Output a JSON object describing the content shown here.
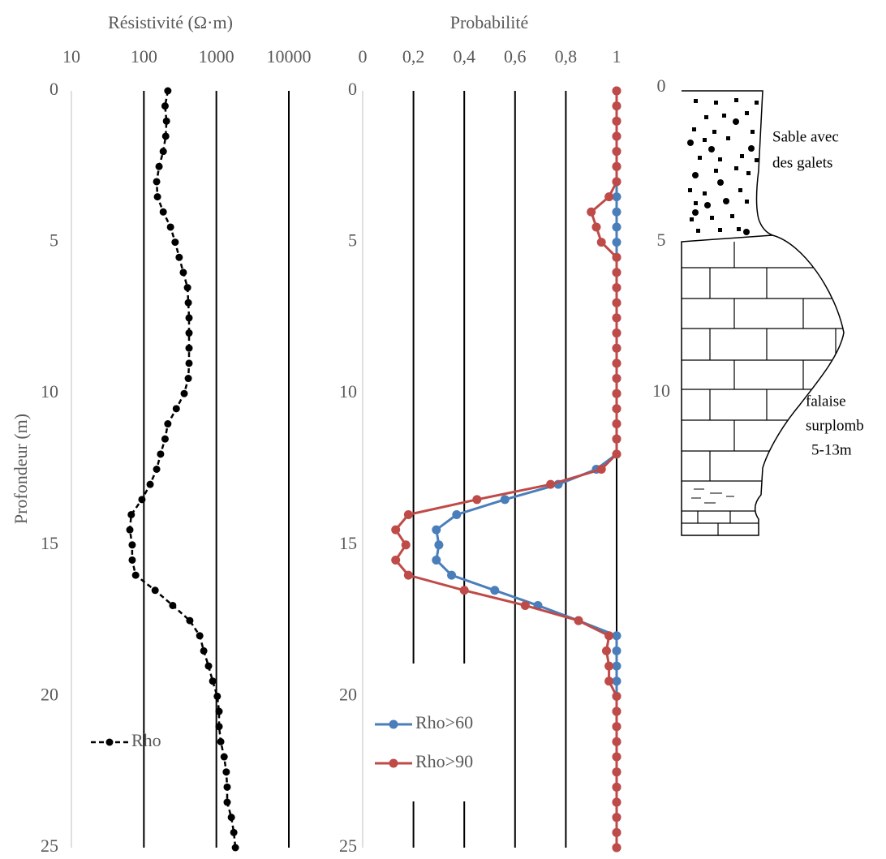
{
  "chart_data": [
    {
      "type": "line",
      "x_label": "Résistivité (Ω·m)",
      "y_label": "Profondeur (m)",
      "xscale": "log",
      "xlim": [
        10,
        10000
      ],
      "xticks": [
        10,
        100,
        1000,
        10000
      ],
      "ylim": [
        0,
        25
      ],
      "yticks": [
        0,
        5,
        10,
        15,
        20,
        25
      ],
      "y_inverted": true,
      "grid": true,
      "legend": "lower left",
      "line_style": "dashed",
      "depth": [
        0,
        0.5,
        1,
        1.5,
        2,
        2.5,
        3,
        3.5,
        4,
        4.5,
        5,
        5.5,
        6,
        6.5,
        7,
        7.5,
        8,
        8.5,
        9,
        9.5,
        10,
        10.5,
        11,
        11.5,
        12,
        12.5,
        13,
        13.5,
        14,
        14.5,
        15,
        15.5,
        16,
        16.5,
        17,
        17.5,
        18,
        18.5,
        19,
        19.5,
        20,
        20.5,
        21,
        21.5,
        22,
        22.5,
        23,
        23.5,
        24,
        24.5,
        25
      ],
      "series": [
        {
          "name": "Rho",
          "color": "#000000",
          "values": [
            214,
            196,
            205,
            200,
            185,
            162,
            150,
            154,
            185,
            233,
            270,
            307,
            350,
            400,
            410,
            420,
            420,
            420,
            420,
            410,
            360,
            280,
            214,
            196,
            170,
            150,
            122,
            94,
            67,
            64,
            69,
            69,
            77,
            143,
            250,
            430,
            590,
            670,
            780,
            890,
            1030,
            1090,
            1090,
            1150,
            1280,
            1370,
            1410,
            1410,
            1610,
            1740,
            1830
          ]
        }
      ]
    },
    {
      "type": "line",
      "x_label": "Probabilité",
      "xlim": [
        0,
        1
      ],
      "xticks": [
        0,
        {
          "value": 0.2,
          "label": "0,2"
        },
        {
          "value": 0.4,
          "label": "0,4"
        },
        {
          "value": 0.6,
          "label": "0,6"
        },
        {
          "value": 0.8,
          "label": "0,8"
        },
        1
      ],
      "ylim": [
        0,
        25
      ],
      "yticks": [
        0,
        5,
        10,
        15,
        20,
        25
      ],
      "y_inverted": true,
      "grid": true,
      "legend": "lower left",
      "depth": [
        0,
        0.5,
        1,
        1.5,
        2,
        2.5,
        3,
        3.5,
        4,
        4.5,
        5,
        5.5,
        6,
        6.5,
        7,
        7.5,
        8,
        8.5,
        9,
        9.5,
        10,
        10.5,
        11,
        11.5,
        12,
        12.5,
        13,
        13.5,
        14,
        14.5,
        15,
        15.5,
        16,
        16.5,
        17,
        17.5,
        18,
        18.5,
        19,
        19.5,
        20,
        20.5,
        21,
        21.5,
        22,
        22.5,
        23,
        23.5,
        24,
        24.5,
        25
      ],
      "series": [
        {
          "name": "Rho>60",
          "color": "#4a7ebb",
          "values": [
            1,
            1,
            1,
            1,
            1,
            1,
            1,
            1,
            1,
            1,
            1,
            1,
            1,
            1,
            1,
            1,
            1,
            1,
            1,
            1,
            1,
            1,
            1,
            1,
            1,
            0.92,
            0.77,
            0.56,
            0.37,
            0.29,
            0.3,
            0.29,
            0.35,
            0.52,
            0.69,
            0.85,
            1,
            1,
            1,
            1,
            1,
            1,
            1,
            1,
            1,
            1,
            1,
            1,
            1,
            1,
            1
          ]
        },
        {
          "name": "Rho>90",
          "color": "#be4b48",
          "values": [
            1,
            1,
            1,
            1,
            1,
            1,
            1,
            0.97,
            0.9,
            0.92,
            0.94,
            1,
            1,
            1,
            1,
            1,
            1,
            1,
            1,
            1,
            1,
            1,
            1,
            1,
            1,
            0.94,
            0.74,
            0.45,
            0.18,
            0.13,
            0.17,
            0.13,
            0.18,
            0.4,
            0.64,
            0.85,
            0.97,
            0.96,
            0.97,
            0.97,
            1,
            1,
            1,
            1,
            1,
            1,
            1,
            1,
            1,
            1,
            1
          ]
        }
      ]
    }
  ],
  "lithology": {
    "yticks": [
      0,
      5,
      10
    ],
    "sand_label": [
      "Sable avec",
      "des galets"
    ],
    "cliff_label": [
      "falaise",
      "surplomb",
      "5-13m"
    ]
  }
}
